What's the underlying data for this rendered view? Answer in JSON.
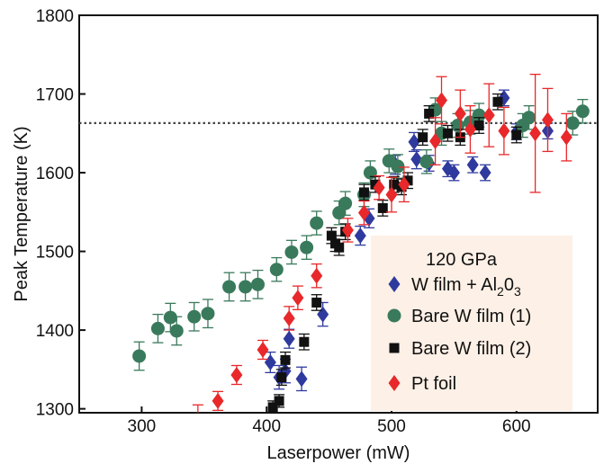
{
  "chart_data": {
    "type": "scatter",
    "xlabel": "Laserpower (mW)",
    "ylabel": "Peak Temperature (K)",
    "xlim": [
      250,
      665
    ],
    "ylim": [
      1295,
      1800
    ],
    "x_ticks": [
      300,
      400,
      500,
      600
    ],
    "y_ticks": [
      1300,
      1400,
      1500,
      1600,
      1700,
      1800
    ],
    "reference_line": {
      "y": 1663,
      "style": "dotted"
    },
    "legend": {
      "title": "120 GPa",
      "placement": "bottom-right",
      "background": "#fdf0e6"
    },
    "series": [
      {
        "name": "W film + Al₂0₃",
        "label_main": "W film + Al",
        "label_sub1": "2",
        "label_mid": "0",
        "label_sub2": "3",
        "marker": "diamond",
        "color": "#2f3a9e",
        "points": [
          [
            403,
            1359,
            13
          ],
          [
            410,
            1340,
            15
          ],
          [
            415,
            1348,
            15
          ],
          [
            418,
            1389,
            12
          ],
          [
            428,
            1338,
            15
          ],
          [
            445,
            1420,
            15
          ],
          [
            475,
            1520,
            12
          ],
          [
            482,
            1542,
            12
          ],
          [
            503,
            1610,
            12
          ],
          [
            518,
            1639,
            12
          ],
          [
            520,
            1617,
            12
          ],
          [
            530,
            1612,
            10
          ],
          [
            545,
            1605,
            10
          ],
          [
            550,
            1600,
            10
          ],
          [
            565,
            1610,
            10
          ],
          [
            575,
            1600,
            10
          ],
          [
            590,
            1695,
            10
          ],
          [
            600,
            1652,
            10
          ],
          [
            625,
            1653,
            10
          ]
        ]
      },
      {
        "name": "Bare W film (1)",
        "label_main": "Bare W film (1)",
        "marker": "circle",
        "color": "#3a7a5c",
        "points": [
          [
            298,
            1367,
            18
          ],
          [
            313,
            1402,
            18
          ],
          [
            323,
            1416,
            18
          ],
          [
            328,
            1399,
            18
          ],
          [
            342,
            1417,
            18
          ],
          [
            353,
            1421,
            18
          ],
          [
            370,
            1455,
            18
          ],
          [
            383,
            1455,
            18
          ],
          [
            393,
            1458,
            18
          ],
          [
            408,
            1477,
            15
          ],
          [
            420,
            1499,
            15
          ],
          [
            432,
            1505,
            15
          ],
          [
            440,
            1536,
            15
          ],
          [
            458,
            1549,
            15
          ],
          [
            463,
            1561,
            15
          ],
          [
            478,
            1572,
            15
          ],
          [
            483,
            1600,
            15
          ],
          [
            498,
            1615,
            15
          ],
          [
            505,
            1608,
            15
          ],
          [
            528,
            1614,
            15
          ],
          [
            535,
            1680,
            15
          ],
          [
            540,
            1650,
            15
          ],
          [
            553,
            1660,
            15
          ],
          [
            563,
            1664,
            15
          ],
          [
            570,
            1673,
            15
          ],
          [
            605,
            1660,
            15
          ],
          [
            610,
            1670,
            15
          ],
          [
            645,
            1663,
            15
          ],
          [
            653,
            1678,
            15
          ]
        ]
      },
      {
        "name": "Bare W film (2)",
        "label_main": "Bare W film (2)",
        "marker": "square",
        "color": "#111111",
        "points": [
          [
            405,
            1302,
            8
          ],
          [
            410,
            1310,
            8
          ],
          [
            412,
            1340,
            10
          ],
          [
            415,
            1362,
            10
          ],
          [
            430,
            1385,
            10
          ],
          [
            440,
            1435,
            10
          ],
          [
            452,
            1520,
            10
          ],
          [
            455,
            1510,
            10
          ],
          [
            458,
            1505,
            10
          ],
          [
            463,
            1525,
            10
          ],
          [
            478,
            1575,
            10
          ],
          [
            487,
            1585,
            10
          ],
          [
            493,
            1555,
            10
          ],
          [
            502,
            1585,
            10
          ],
          [
            508,
            1582,
            10
          ],
          [
            513,
            1590,
            10
          ],
          [
            525,
            1645,
            10
          ],
          [
            530,
            1675,
            10
          ],
          [
            545,
            1650,
            10
          ],
          [
            555,
            1645,
            10
          ],
          [
            570,
            1660,
            10
          ],
          [
            585,
            1690,
            10
          ],
          [
            600,
            1648,
            10
          ]
        ]
      },
      {
        "name": "Pt foil",
        "label_main": "Pt foil",
        "marker": "diamond",
        "color": "#e8282a",
        "points": [
          [
            345,
            1290,
            15
          ],
          [
            361,
            1310,
            12
          ],
          [
            376,
            1343,
            12
          ],
          [
            397,
            1375,
            12
          ],
          [
            418,
            1415,
            15
          ],
          [
            425,
            1441,
            15
          ],
          [
            440,
            1469,
            15
          ],
          [
            465,
            1527,
            15
          ],
          [
            478,
            1549,
            15
          ],
          [
            490,
            1581,
            15
          ],
          [
            500,
            1572,
            22
          ],
          [
            510,
            1585,
            22
          ],
          [
            535,
            1640,
            30
          ],
          [
            540,
            1692,
            30
          ],
          [
            555,
            1675,
            30
          ],
          [
            563,
            1655,
            30
          ],
          [
            578,
            1673,
            40
          ],
          [
            590,
            1653,
            30
          ],
          [
            615,
            1650,
            75
          ],
          [
            625,
            1667,
            40
          ],
          [
            640,
            1645,
            30
          ]
        ]
      }
    ]
  }
}
